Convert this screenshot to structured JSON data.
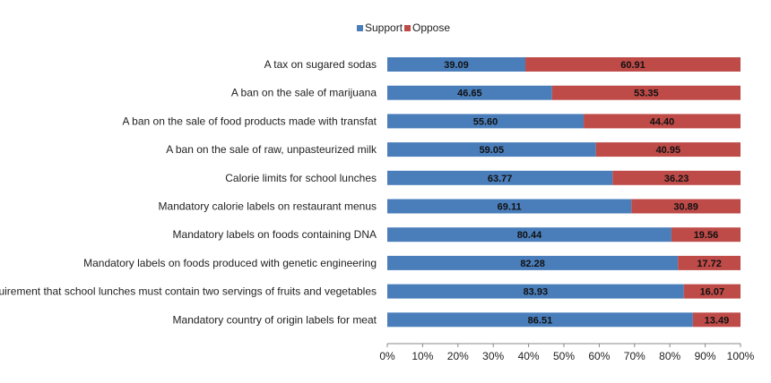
{
  "chart_data": {
    "type": "bar",
    "orientation": "horizontal",
    "stacked": "percent",
    "categories": [
      "A tax on sugared sodas",
      "A ban on the sale of marijuana",
      "A ban on the sale of food products made with transfat",
      "A ban on the sale of raw, unpasteurized milk",
      "Calorie limits for school lunches",
      "Mandatory calorie labels on restaurant menus",
      "Mandatory labels on foods containing DNA",
      "Mandatory labels on foods produced with genetic engineering",
      "A requirement that school lunches must contain two servings of fruits and vegetables",
      "Mandatory country of origin labels for meat"
    ],
    "series": [
      {
        "name": "Support",
        "color": "#4a7ebb",
        "values": [
          39.09,
          46.65,
          55.6,
          59.05,
          63.77,
          69.11,
          80.44,
          82.28,
          83.93,
          86.51
        ],
        "labels": [
          "39.09",
          "46.65",
          "55.60",
          "59.05",
          "63.77",
          "69.11",
          "80.44",
          "82.28",
          "83.93",
          "86.51"
        ]
      },
      {
        "name": "Oppose",
        "color": "#be4b48",
        "values": [
          60.91,
          53.35,
          44.4,
          40.95,
          36.23,
          30.89,
          19.56,
          17.72,
          16.07,
          13.49
        ],
        "labels": [
          "60.91",
          "53.35",
          "44.40",
          "40.95",
          "36.23",
          "30.89",
          "19.56",
          "17.72",
          "16.07",
          "13.49"
        ]
      }
    ],
    "xlim": [
      0,
      100
    ],
    "xticks": [
      "0%",
      "10%",
      "20%",
      "30%",
      "40%",
      "50%",
      "60%",
      "70%",
      "80%",
      "90%",
      "100%"
    ],
    "legend_position": "top",
    "grid": false
  }
}
